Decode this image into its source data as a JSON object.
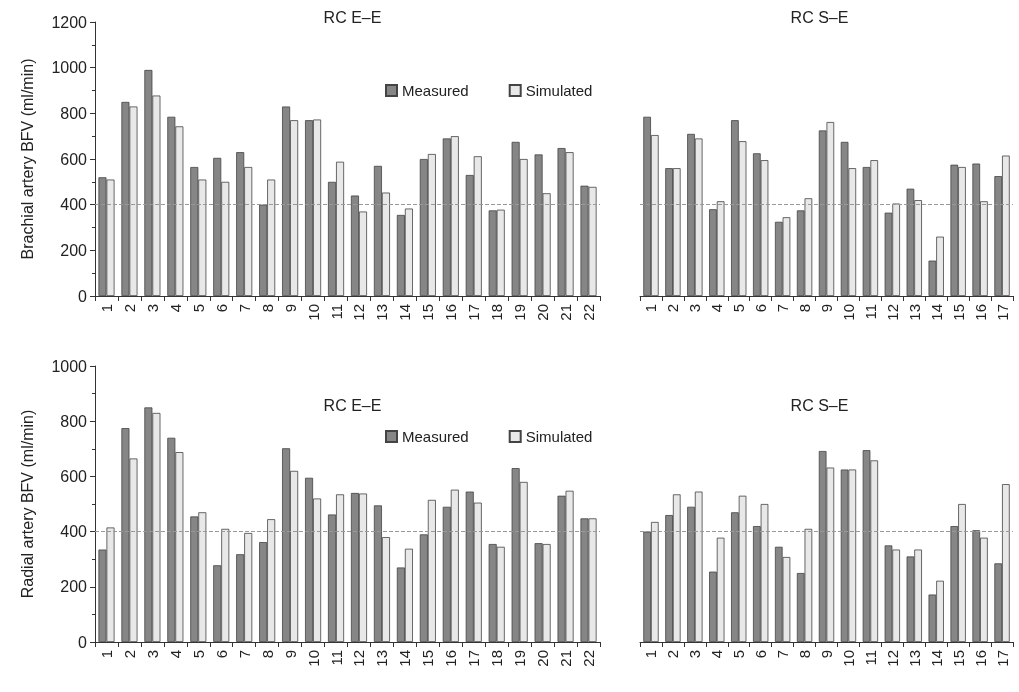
{
  "chart_data": [
    {
      "type": "bar",
      "title": "RC E–E",
      "ylabel": "Brachial artery BFV (ml/min)",
      "categories": [
        "1",
        "2",
        "3",
        "4",
        "5",
        "6",
        "7",
        "8",
        "9",
        "10",
        "11",
        "12",
        "13",
        "14",
        "15",
        "16",
        "17",
        "18",
        "19",
        "20",
        "21",
        "22"
      ],
      "series": [
        {
          "name": "Measured",
          "color": "#868686",
          "values": [
            520,
            850,
            990,
            785,
            565,
            605,
            630,
            400,
            830,
            770,
            500,
            440,
            570,
            355,
            600,
            690,
            530,
            375,
            675,
            620,
            648,
            483
          ]
        },
        {
          "name": "Simulated",
          "color": "#e8e8e8",
          "values": [
            510,
            830,
            878,
            743,
            510,
            500,
            565,
            510,
            770,
            773,
            588,
            370,
            453,
            383,
            622,
            700,
            612,
            378,
            600,
            450,
            630,
            478
          ]
        }
      ],
      "ylim": [
        0,
        1200
      ],
      "yticks": [
        0,
        200,
        400,
        600,
        800,
        1000,
        1200
      ],
      "grid": false,
      "legend": "top",
      "ref_lines": [
        {
          "axis": "y",
          "value": 400,
          "color": "#999999",
          "line_style": "dashed"
        }
      ]
    },
    {
      "type": "bar",
      "title": "RC S–E",
      "categories": [
        "1",
        "2",
        "3",
        "4",
        "5",
        "6",
        "7",
        "8",
        "9",
        "10",
        "11",
        "12",
        "13",
        "14",
        "15",
        "16",
        "17"
      ],
      "series": [
        {
          "color": "#868686",
          "values": [
            785,
            560,
            710,
            380,
            770,
            625,
            325,
            375,
            725,
            675,
            565,
            365,
            470,
            155,
            575,
            580,
            525
          ]
        },
        {
          "color": "#e8e8e8",
          "values": [
            705,
            560,
            690,
            415,
            678,
            595,
            345,
            428,
            762,
            560,
            595,
            405,
            420,
            260,
            565,
            415,
            615
          ]
        }
      ],
      "ylim": [
        0,
        1200
      ],
      "yticks": [
        0,
        200,
        400,
        600,
        800,
        1000,
        1200
      ],
      "tick_labels": "x",
      "grid": false,
      "ref_lines": [
        {
          "axis": "y",
          "value": 400,
          "color": "#999999",
          "line_style": "dashed"
        }
      ]
    },
    {
      "type": "bar",
      "title": "RC E–E",
      "ylabel": "Radial artery BFV (ml/min)",
      "categories": [
        "1",
        "2",
        "3",
        "4",
        "5",
        "6",
        "7",
        "8",
        "9",
        "10",
        "11",
        "12",
        "13",
        "14",
        "15",
        "16",
        "17",
        "18",
        "19",
        "20",
        "21",
        "22"
      ],
      "series": [
        {
          "name": "Measured",
          "color": "#868686",
          "values": [
            335,
            775,
            850,
            740,
            455,
            278,
            318,
            362,
            702,
            595,
            462,
            540,
            495,
            270,
            390,
            490,
            545,
            355,
            630,
            358,
            530,
            448
          ]
        },
        {
          "name": "Simulated",
          "color": "#e8e8e8",
          "values": [
            415,
            665,
            830,
            688,
            470,
            410,
            395,
            445,
            620,
            520,
            535,
            538,
            380,
            338,
            515,
            552,
            505,
            345,
            580,
            355,
            548,
            448
          ]
        }
      ],
      "ylim": [
        0,
        1000
      ],
      "yticks": [
        0,
        200,
        400,
        600,
        800,
        1000
      ],
      "grid": false,
      "legend": "top",
      "ref_lines": [
        {
          "axis": "y",
          "value": 400,
          "color": "#999999",
          "line_style": "dashed"
        }
      ]
    },
    {
      "type": "bar",
      "title": "RC S–E",
      "categories": [
        "1",
        "2",
        "3",
        "4",
        "5",
        "6",
        "7",
        "8",
        "9",
        "10",
        "11",
        "12",
        "13",
        "14",
        "15",
        "16",
        "17"
      ],
      "series": [
        {
          "color": "#868686",
          "values": [
            400,
            460,
            490,
            255,
            470,
            420,
            345,
            250,
            692,
            625,
            695,
            350,
            310,
            172,
            420,
            405,
            285
          ]
        },
        {
          "color": "#e8e8e8",
          "values": [
            435,
            535,
            545,
            378,
            530,
            500,
            308,
            410,
            632,
            625,
            658,
            335,
            335,
            222,
            500,
            378,
            572
          ]
        }
      ],
      "ylim": [
        0,
        1000
      ],
      "yticks": [
        0,
        200,
        400,
        600,
        800,
        1000
      ],
      "tick_labels": "x",
      "grid": false,
      "ref_lines": [
        {
          "axis": "y",
          "value": 400,
          "color": "#999999",
          "line_style": "dashed"
        }
      ]
    }
  ]
}
